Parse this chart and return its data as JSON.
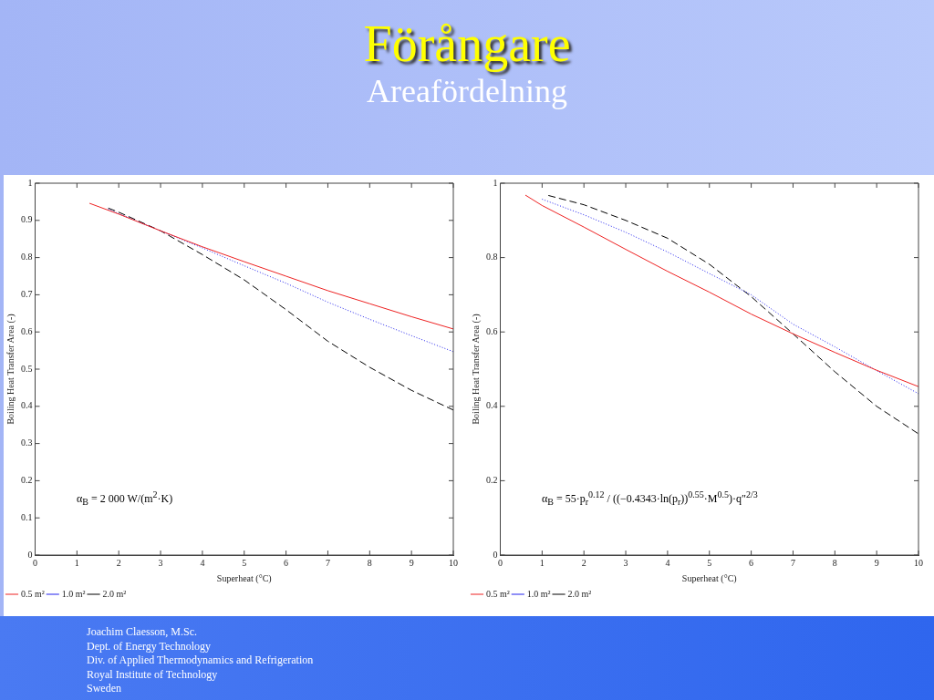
{
  "chart_data": [
    {
      "type": "other",
      "title": "Förångare",
      "subtitle": "Areafördelning"
    },
    {
      "type": "line",
      "xlabel": "Superheat (°C)",
      "ylabel": "Boiling Heat Transfer Area (-)",
      "xlim": [
        0,
        10
      ],
      "ylim": [
        0,
        1
      ],
      "xticks": [
        0,
        1,
        2,
        3,
        4,
        5,
        6,
        7,
        8,
        9,
        10
      ],
      "yticks": [
        0,
        0.1,
        0.2,
        0.3,
        0.4,
        0.5,
        0.6,
        0.7,
        0.8,
        0.9,
        1
      ],
      "marker": "none",
      "legend": "bottom left",
      "annotations": [
        "α$_{B}$ = 2 000 W/(m$^{2}$·K)"
      ],
      "series": [
        {
          "name": "0.5 m²",
          "color": "#ee2222",
          "line_style": "solid",
          "x": [
            1.3,
            2,
            3,
            4,
            5,
            6,
            7,
            8,
            9,
            10
          ],
          "values": [
            0.946,
            0.917,
            0.872,
            0.829,
            0.789,
            0.75,
            0.711,
            0.676,
            0.641,
            0.608
          ]
        },
        {
          "name": "1.0 m²",
          "color": "#2222ee",
          "line_style": "dotted",
          "x": [
            1.75,
            2,
            3,
            4,
            5,
            6,
            7,
            8,
            9,
            10
          ],
          "values": [
            0.93,
            0.918,
            0.872,
            0.826,
            0.778,
            0.731,
            0.68,
            0.634,
            0.59,
            0.547
          ]
        },
        {
          "name": "2.0 m²",
          "color": "#000000",
          "line_style": "dashed",
          "x": [
            1.75,
            2,
            3,
            4,
            5,
            6,
            7,
            8,
            9,
            10
          ],
          "values": [
            0.933,
            0.922,
            0.872,
            0.808,
            0.74,
            0.66,
            0.575,
            0.505,
            0.443,
            0.39
          ]
        }
      ]
    },
    {
      "type": "line",
      "xlabel": "Superheat (°C)",
      "ylabel": "Boiling Heat Transfer Area (-)",
      "xlim": [
        0,
        10
      ],
      "ylim": [
        0,
        1
      ],
      "xticks": [
        0,
        1,
        2,
        3,
        4,
        5,
        6,
        7,
        8,
        9,
        10
      ],
      "yticks": [
        0,
        0.2,
        0.4,
        0.6,
        0.8,
        1
      ],
      "marker": "none",
      "legend": "bottom left",
      "annotations": [
        "α$_{B}$ = 55·p$_{r}$$^{0.12}$ / ((−0.4343·ln(p$_{r}$))$^{0.55}$·M$^{0.5}$)·q″$^{2/3}$"
      ],
      "series": [
        {
          "name": "0.5 m²",
          "color": "#ee2222",
          "line_style": "solid",
          "x": [
            0.6,
            1,
            2,
            3,
            4,
            5,
            6,
            7,
            8,
            9,
            10
          ],
          "values": [
            0.968,
            0.94,
            0.882,
            0.822,
            0.763,
            0.707,
            0.648,
            0.595,
            0.545,
            0.497,
            0.453
          ]
        },
        {
          "name": "1.0 m²",
          "color": "#2222ee",
          "line_style": "dotted",
          "x": [
            1,
            2,
            3,
            4,
            5,
            6,
            7,
            8,
            9,
            10
          ],
          "values": [
            0.957,
            0.915,
            0.868,
            0.815,
            0.757,
            0.7,
            0.621,
            0.56,
            0.496,
            0.434
          ]
        },
        {
          "name": "2.0 m²",
          "color": "#000000",
          "line_style": "dashed",
          "x": [
            1.15,
            2,
            3,
            4,
            5,
            6,
            7,
            8,
            9,
            10
          ],
          "values": [
            0.967,
            0.942,
            0.9,
            0.852,
            0.782,
            0.695,
            0.595,
            0.493,
            0.4,
            0.326
          ]
        }
      ]
    },
    {
      "type": "other",
      "annotations": [
        "Joachim Claesson, M.Sc.",
        "Dept. of Energy Technology",
        "Div. of Applied Thermodynamics and Refrigeration",
        "Royal Institute of Technology",
        "Sweden"
      ]
    }
  ]
}
